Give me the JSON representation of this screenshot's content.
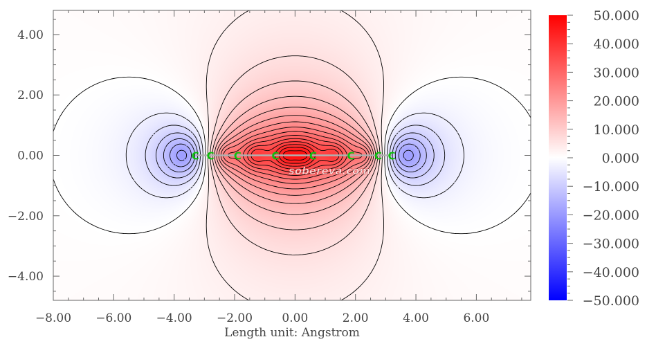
{
  "chart_data": {
    "type": "heatmap",
    "title": "",
    "xlabel": "Length unit: Angstrom",
    "ylabel": "",
    "xlim": [
      -8.0,
      7.8
    ],
    "ylim": [
      -4.8,
      4.8
    ],
    "x_ticks": [
      "−8.00",
      "−6.00",
      "−4.00",
      "−2.00",
      "0.00",
      "2.00",
      "4.00",
      "6.00"
    ],
    "x_tick_values": [
      -8,
      -6,
      -4,
      -2,
      0,
      2,
      4,
      6
    ],
    "y_ticks": [
      "4.00",
      "2.00",
      "0.00",
      "−2.00",
      "−4.00"
    ],
    "y_tick_values": [
      4,
      2,
      0,
      -2,
      -4
    ],
    "colorbar": {
      "min": -50,
      "max": 50,
      "ticks": [
        "50.000",
        "40.000",
        "30.000",
        "20.000",
        "10.000",
        "0.000",
        "−10.000",
        "−20.000",
        "−30.000",
        "−40.000",
        "−50.000"
      ],
      "tick_values": [
        50,
        40,
        30,
        20,
        10,
        0,
        -10,
        -20,
        -30,
        -40,
        -50
      ],
      "colors": {
        "min": "#0000ff",
        "mid": "#ffffff",
        "max": "#ff0000"
      }
    },
    "contours": {
      "positive_style": "solid",
      "negative_style": "dashed",
      "color": "#000000"
    },
    "bond_axis_color": "#b0b0b0",
    "atoms": [
      {
        "label": "C",
        "x": -3.3,
        "y": 0.0
      },
      {
        "label": "C",
        "x": -2.8,
        "y": 0.0
      },
      {
        "label": "C",
        "x": -1.9,
        "y": 0.0
      },
      {
        "label": "C",
        "x": -0.65,
        "y": 0.0
      },
      {
        "label": "C",
        "x": 0.6,
        "y": 0.0
      },
      {
        "label": "C",
        "x": 1.85,
        "y": 0.0
      },
      {
        "label": "C",
        "x": 2.75,
        "y": 0.0
      },
      {
        "label": "C",
        "x": 3.2,
        "y": 0.0
      }
    ],
    "watermark": "sobereva.com"
  }
}
